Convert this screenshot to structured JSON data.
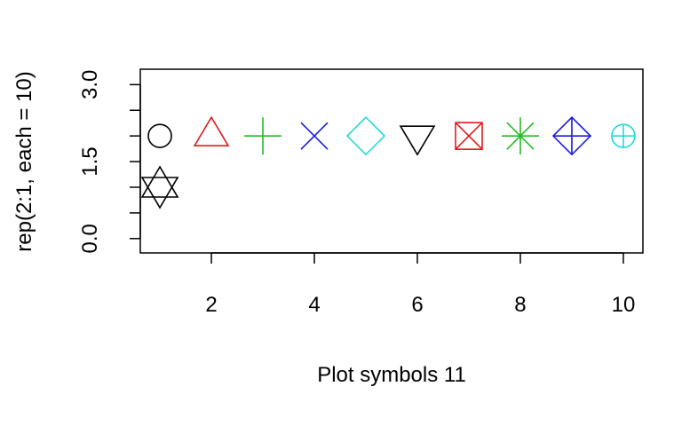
{
  "chart_data": {
    "type": "scatter",
    "xlabel": "Plot symbols 11",
    "ylabel": "rep(2:1, each = 10)",
    "xlim": [
      0.62,
      10.38
    ],
    "ylim": [
      -0.28,
      3.3
    ],
    "x_ticks": [
      2,
      4,
      6,
      8,
      10
    ],
    "x_tick_labels": [
      "2",
      "4",
      "6",
      "8",
      "10"
    ],
    "y_ticks": [
      0,
      0.5,
      1,
      1.5,
      2,
      2.5,
      3
    ],
    "y_tick_labels": [
      {
        "value": 0,
        "label": "0.0"
      },
      {
        "value": 1.5,
        "label": "1.5"
      },
      {
        "value": 3,
        "label": "3.0"
      }
    ],
    "grid": false,
    "points": [
      {
        "x": 1,
        "y": 2,
        "shape": "circle",
        "color": "#000000"
      },
      {
        "x": 2,
        "y": 2,
        "shape": "triangle-up",
        "color": "#df1b1b"
      },
      {
        "x": 3,
        "y": 2,
        "shape": "plus",
        "color": "#22bb22"
      },
      {
        "x": 4,
        "y": 2,
        "shape": "cross",
        "color": "#1b1bdd"
      },
      {
        "x": 5,
        "y": 2,
        "shape": "diamond",
        "color": "#22d8d8"
      },
      {
        "x": 6,
        "y": 2,
        "shape": "triangle-down",
        "color": "#000000"
      },
      {
        "x": 7,
        "y": 2,
        "shape": "square-cross",
        "color": "#df1b1b"
      },
      {
        "x": 8,
        "y": 2,
        "shape": "asterisk",
        "color": "#22bb22"
      },
      {
        "x": 9,
        "y": 2,
        "shape": "diamond-plus",
        "color": "#1b1bdd"
      },
      {
        "x": 10,
        "y": 2,
        "shape": "circle-plus",
        "color": "#22d8d8"
      },
      {
        "x": 1,
        "y": 1,
        "shape": "star-of-david",
        "color": "#000000"
      }
    ]
  }
}
